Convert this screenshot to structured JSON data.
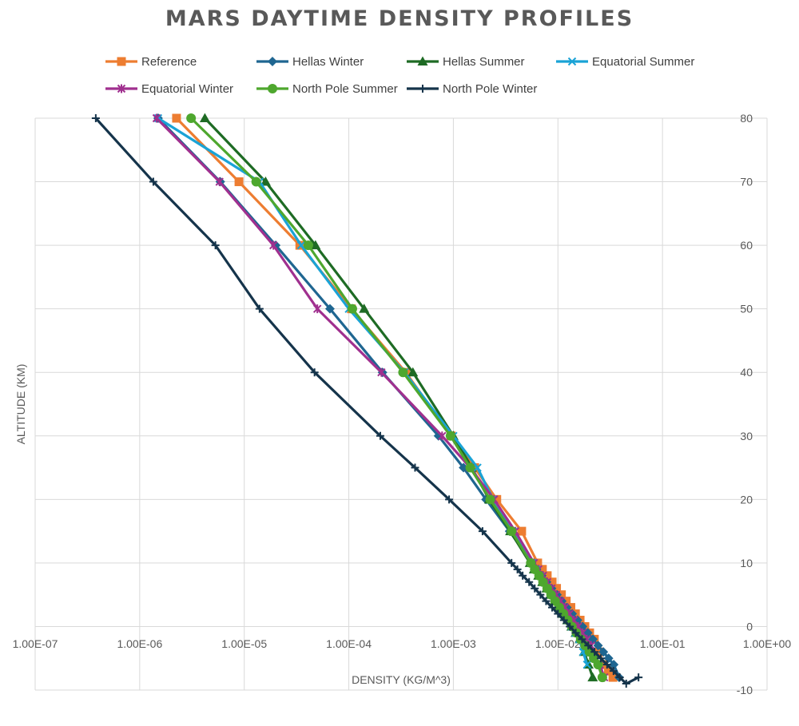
{
  "chart_data": {
    "type": "scatter",
    "title": "MARS DAYTIME DENSITY PROFILES",
    "xlabel": "DENSITY (KG/M^3)",
    "ylabel": "ALTITUDE (KM)",
    "x_scale": "log",
    "xlim": [
      1e-07,
      1
    ],
    "ylim": [
      -10,
      80
    ],
    "x_ticks": [
      "1.00E-07",
      "1.00E-06",
      "1.00E-05",
      "1.00E-04",
      "1.00E-03",
      "1.00E-02",
      "1.00E-01",
      "1.00E+00"
    ],
    "y_ticks": [
      "80",
      "70",
      "60",
      "50",
      "40",
      "30",
      "20",
      "10",
      "0",
      "-10"
    ],
    "y_axis_side": "right",
    "grid": true,
    "legend_position": "top",
    "series": [
      {
        "name": "Reference",
        "color": "#ED7D31",
        "marker": "square",
        "x": [
          2.25e-06,
          8.9e-06,
          3.4e-05,
          0.000106,
          0.00035,
          0.00095,
          0.0016,
          0.0026,
          0.0045,
          0.0064,
          0.0071,
          0.0079,
          0.0088,
          0.0097,
          0.0108,
          0.012,
          0.0133,
          0.0147,
          0.0163,
          0.0181,
          0.0201,
          0.0223,
          0.0247,
          0.0274,
          0.0304,
          0.0336
        ],
        "y": [
          80,
          70,
          60,
          50,
          40,
          30,
          25,
          20,
          15,
          10,
          9,
          8,
          7,
          6,
          5,
          4,
          3,
          2,
          1,
          0,
          -1,
          -2,
          -4,
          -6,
          -7,
          -8
        ]
      },
      {
        "name": "Hellas Winter",
        "color": "#1F6691",
        "marker": "diamond",
        "x": [
          1.5e-06,
          5.9e-06,
          2e-05,
          6.6e-05,
          0.00021,
          0.00072,
          0.00125,
          0.00205,
          0.00345,
          0.0056,
          0.00625,
          0.007,
          0.0078,
          0.0087,
          0.0098,
          0.0109,
          0.0122,
          0.0137,
          0.0154,
          0.0172,
          0.0193,
          0.0216,
          0.0242,
          0.0272,
          0.0305,
          0.0342,
          0.0385
        ],
        "y": [
          80,
          70,
          60,
          50,
          40,
          30,
          25,
          20,
          15,
          10,
          9,
          8,
          7,
          6,
          5,
          4,
          3,
          2,
          1,
          0,
          -1,
          -2,
          -3,
          -4,
          -5,
          -6,
          -8
        ]
      },
      {
        "name": "Hellas Summer",
        "color": "#1E6B24",
        "marker": "triangle",
        "x": [
          4.2e-06,
          1.6e-05,
          4.8e-05,
          0.00014,
          0.00041,
          0.001,
          0.0015,
          0.0022,
          0.0035,
          0.0054,
          0.0059,
          0.0065,
          0.0071,
          0.0078,
          0.0085,
          0.0093,
          0.0102,
          0.0112,
          0.0123,
          0.0135,
          0.0148,
          0.0162,
          0.0178,
          0.0196,
          0.0215
        ],
        "y": [
          80,
          70,
          60,
          50,
          40,
          30,
          25,
          20,
          15,
          10,
          9,
          8,
          7,
          6,
          5,
          4,
          3,
          2,
          1,
          0,
          -1,
          -2,
          -4,
          -6,
          -8
        ]
      },
      {
        "name": "Equatorial Summer",
        "color": "#1AA3D6",
        "marker": "x",
        "x": [
          1.5e-06,
          1.4e-05,
          3.5e-05,
          0.0001,
          0.00034,
          0.001,
          0.0017,
          0.0024,
          0.0037,
          0.0057,
          0.0062,
          0.0068,
          0.0074,
          0.0081,
          0.0088,
          0.0096,
          0.0105,
          0.0114,
          0.0124,
          0.0135,
          0.0147,
          0.016,
          0.0174,
          0.019
        ],
        "y": [
          80,
          70,
          60,
          50,
          40,
          30,
          25,
          20,
          15,
          10,
          9,
          8,
          7,
          6,
          5,
          4,
          3,
          2,
          1,
          0,
          -1,
          -2,
          -4,
          -6
        ]
      },
      {
        "name": "Equatorial Winter",
        "color": "#A0308F",
        "marker": "star",
        "x": [
          1.45e-06,
          5.8e-06,
          1.9e-05,
          5e-05,
          0.000205,
          0.00078,
          0.00145,
          0.00245,
          0.0039,
          0.0059,
          0.0065,
          0.0072,
          0.0079,
          0.0087,
          0.0096,
          0.0106,
          0.0117,
          0.0129,
          0.0142,
          0.0156,
          0.0172,
          0.0189,
          0.0208,
          0.0229,
          0.0252,
          0.0277
        ],
        "y": [
          80,
          70,
          60,
          50,
          40,
          30,
          25,
          20,
          15,
          10,
          9,
          8,
          7,
          6,
          5,
          4,
          3,
          2,
          1,
          0,
          -1,
          -2,
          -3,
          -5,
          -6,
          -8
        ]
      },
      {
        "name": "North Pole Summer",
        "color": "#4EA72E",
        "marker": "circle",
        "x": [
          3.1e-06,
          1.3e-05,
          4.1e-05,
          0.000108,
          0.00033,
          0.00094,
          0.00145,
          0.00225,
          0.0036,
          0.0055,
          0.006,
          0.0066,
          0.0072,
          0.0079,
          0.0086,
          0.0094,
          0.0103,
          0.0113,
          0.0124,
          0.0136,
          0.015,
          0.0165,
          0.0182,
          0.02,
          0.022,
          0.0242,
          0.0266
        ],
        "y": [
          80,
          70,
          60,
          50,
          40,
          30,
          25,
          20,
          15,
          10,
          9,
          8,
          7,
          6,
          5,
          4,
          3,
          2,
          1,
          0,
          -1,
          -2,
          -3,
          -4,
          -5,
          -6,
          -8
        ]
      },
      {
        "name": "North Pole Winter",
        "color": "#15344B",
        "marker": "plus",
        "x": [
          3.8e-07,
          1.35e-06,
          5.3e-06,
          1.4e-05,
          4.7e-05,
          0.0002,
          0.00043,
          0.00091,
          0.0019,
          0.0036,
          0.0041,
          0.0046,
          0.0053,
          0.006,
          0.0068,
          0.0077,
          0.0088,
          0.01,
          0.0114,
          0.013,
          0.0148,
          0.017,
          0.0195,
          0.0224,
          0.0257,
          0.0295,
          0.034,
          0.039,
          0.045,
          0.059
        ],
        "y": [
          80,
          70,
          60,
          50,
          40,
          30,
          25,
          20,
          15,
          10,
          9,
          8,
          7,
          6,
          5,
          4,
          3,
          2,
          1,
          0,
          -1,
          -2,
          -3,
          -4,
          -5,
          -6,
          -7,
          -8,
          -9,
          -8
        ]
      }
    ]
  }
}
